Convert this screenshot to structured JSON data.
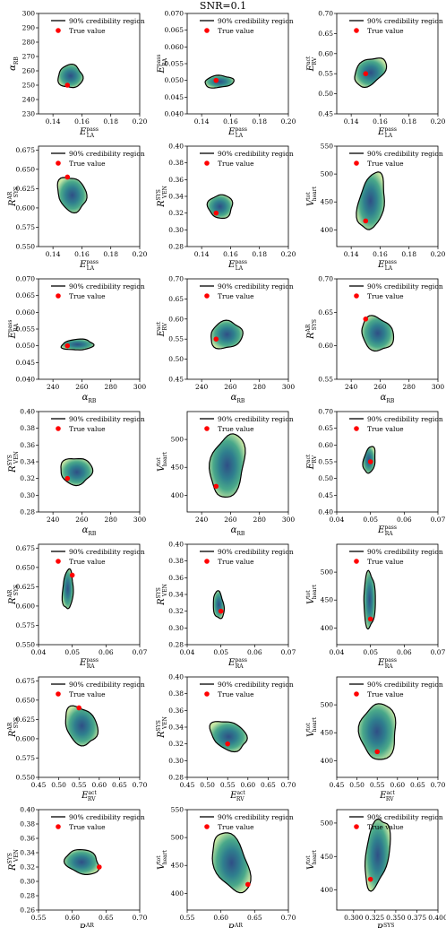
{
  "figure": {
    "title": "SNR=0.1"
  },
  "legend": {
    "region_label": "90% credibility region",
    "truth_label": "True value"
  },
  "colors": {
    "truth": "#ff0000",
    "contour": "#000000",
    "fill_outer": "#c6e6a4",
    "fill_mid": "#3fa48a",
    "fill_inner": "#2f4f86"
  },
  "chart_data": [
    {
      "type": "scatter",
      "xlabel": "E_LA^pass",
      "ylabel": "α_RB",
      "xlim": [
        0.13,
        0.2
      ],
      "ylim": [
        230,
        300
      ],
      "xticks": [
        "0.14",
        "0.16",
        "0.18",
        "0.20"
      ],
      "yticks": [
        "230",
        "240",
        "250",
        "260",
        "270",
        "280",
        "290",
        "300"
      ],
      "region_center": [
        0.152,
        256
      ],
      "region_half_width": [
        0.0085,
        8
      ],
      "tilt": 0,
      "truth": [
        0.15,
        250
      ]
    },
    {
      "type": "scatter",
      "xlabel": "E_LA^pass",
      "ylabel": "E_RA^pass",
      "xlim": [
        0.13,
        0.2
      ],
      "ylim": [
        0.04,
        0.07
      ],
      "xticks": [
        "0.14",
        "0.16",
        "0.18",
        "0.20"
      ],
      "yticks": [
        "0.040",
        "0.045",
        "0.050",
        "0.055",
        "0.060",
        "0.065",
        "0.070"
      ],
      "region_center": [
        0.152,
        0.0496
      ],
      "region_half_width": [
        0.01,
        0.0018
      ],
      "tilt": 0.25,
      "truth": [
        0.15,
        0.05
      ]
    },
    {
      "type": "scatter",
      "xlabel": "E_LA^pass",
      "ylabel": "E_RV^act",
      "xlim": [
        0.13,
        0.2
      ],
      "ylim": [
        0.45,
        0.7
      ],
      "xticks": [
        "0.14",
        "0.16",
        "0.18",
        "0.20"
      ],
      "yticks": [
        "0.45",
        "0.50",
        "0.55",
        "0.60",
        "0.65",
        "0.70"
      ],
      "region_center": [
        0.153,
        0.555
      ],
      "region_half_width": [
        0.011,
        0.033
      ],
      "tilt": 0.7,
      "truth": [
        0.15,
        0.55
      ]
    },
    {
      "type": "scatter",
      "xlabel": "E_LA^pass",
      "ylabel": "R_SYS^AR",
      "xlim": [
        0.13,
        0.2
      ],
      "ylim": [
        0.55,
        0.68
      ],
      "xticks": [
        "0.14",
        "0.16",
        "0.18",
        "0.20"
      ],
      "yticks": [
        "0.550",
        "0.575",
        "0.600",
        "0.625",
        "0.650",
        "0.675"
      ],
      "region_center": [
        0.153,
        0.618
      ],
      "region_half_width": [
        0.01,
        0.022
      ],
      "tilt": -0.35,
      "truth": [
        0.15,
        0.64
      ]
    },
    {
      "type": "scatter",
      "xlabel": "E_LA^pass",
      "ylabel": "R_VEN^SYS",
      "xlim": [
        0.13,
        0.2
      ],
      "ylim": [
        0.28,
        0.4
      ],
      "xticks": [
        "0.14",
        "0.16",
        "0.18",
        "0.20"
      ],
      "yticks": [
        "0.28",
        "0.30",
        "0.32",
        "0.34",
        "0.36",
        "0.38",
        "0.40"
      ],
      "region_center": [
        0.153,
        0.328
      ],
      "region_half_width": [
        0.0085,
        0.014
      ],
      "tilt": 0,
      "truth": [
        0.15,
        0.32
      ]
    },
    {
      "type": "scatter",
      "xlabel": "E_LA^pass",
      "ylabel": "V_heart^tot",
      "xlim": [
        0.13,
        0.2
      ],
      "ylim": [
        370,
        550
      ],
      "xticks": [
        "0.14",
        "0.16",
        "0.18",
        "0.20"
      ],
      "yticks": [
        "400",
        "450",
        "500",
        "550"
      ],
      "region_center": [
        0.154,
        450
      ],
      "region_half_width": [
        0.0095,
        48
      ],
      "tilt": 0.6,
      "truth": [
        0.15,
        416
      ]
    },
    {
      "type": "scatter",
      "xlabel": "α_RB",
      "ylabel": "E_RA^pass",
      "xlim": [
        230,
        300
      ],
      "ylim": [
        0.04,
        0.07
      ],
      "xticks": [
        "240",
        "260",
        "280",
        "300"
      ],
      "yticks": [
        "0.040",
        "0.045",
        "0.050",
        "0.055",
        "0.060",
        "0.065",
        "0.070"
      ],
      "region_center": [
        257,
        0.0503
      ],
      "region_half_width": [
        11,
        0.0016
      ],
      "tilt": 0.2,
      "truth": [
        250,
        0.05
      ]
    },
    {
      "type": "scatter",
      "xlabel": "α_RB",
      "ylabel": "E_RV^act",
      "xlim": [
        230,
        300
      ],
      "ylim": [
        0.45,
        0.7
      ],
      "xticks": [
        "240",
        "260",
        "280",
        "300"
      ],
      "yticks": [
        "0.45",
        "0.50",
        "0.55",
        "0.60",
        "0.65",
        "0.70"
      ],
      "region_center": [
        257,
        0.56
      ],
      "region_half_width": [
        11,
        0.034
      ],
      "tilt": 0.2,
      "truth": [
        250,
        0.55
      ]
    },
    {
      "type": "scatter",
      "xlabel": "α_RB",
      "ylabel": "R_SYS^AR",
      "xlim": [
        230,
        300
      ],
      "ylim": [
        0.55,
        0.7
      ],
      "xticks": [
        "240",
        "260",
        "280",
        "300"
      ],
      "yticks": [
        "0.55",
        "0.60",
        "0.65",
        "0.70"
      ],
      "region_center": [
        258,
        0.618
      ],
      "region_half_width": [
        11,
        0.025
      ],
      "tilt": -0.3,
      "truth": [
        250,
        0.64
      ]
    },
    {
      "type": "scatter",
      "xlabel": "α_RB",
      "ylabel": "R_VEN^SYS",
      "xlim": [
        230,
        300
      ],
      "ylim": [
        0.28,
        0.4
      ],
      "xticks": [
        "240",
        "260",
        "280",
        "300"
      ],
      "yticks": [
        "0.28",
        "0.30",
        "0.32",
        "0.34",
        "0.36",
        "0.38",
        "0.40"
      ],
      "region_center": [
        256,
        0.329
      ],
      "region_half_width": [
        11,
        0.016
      ],
      "tilt": 0,
      "truth": [
        250,
        0.32
      ]
    },
    {
      "type": "scatter",
      "xlabel": "α_RB",
      "ylabel": "V_heart^tot",
      "xlim": [
        230,
        300
      ],
      "ylim": [
        370,
        550
      ],
      "xticks": [
        "240",
        "260",
        "280",
        "300"
      ],
      "yticks": [
        "400",
        "450",
        "500"
      ],
      "region_center": [
        258,
        453
      ],
      "region_half_width": [
        12,
        55
      ],
      "tilt": 0.4,
      "truth": [
        250,
        416
      ]
    },
    {
      "type": "scatter",
      "xlabel": "E_RA^pass",
      "ylabel": "E_RV^act",
      "xlim": [
        0.04,
        0.07
      ],
      "ylim": [
        0.4,
        0.7
      ],
      "xticks": [
        "0.04",
        "0.05",
        "0.06",
        "0.07"
      ],
      "yticks": [
        "0.40",
        "0.45",
        "0.50",
        "0.55",
        "0.60",
        "0.65",
        "0.70"
      ],
      "region_center": [
        0.0497,
        0.555
      ],
      "region_half_width": [
        0.0018,
        0.038
      ],
      "tilt": 0.5,
      "truth": [
        0.05,
        0.55
      ]
    },
    {
      "type": "scatter",
      "xlabel": "E_RA^pass",
      "ylabel": "R_SYS^AR",
      "xlim": [
        0.04,
        0.07
      ],
      "ylim": [
        0.55,
        0.68
      ],
      "xticks": [
        "0.04",
        "0.05",
        "0.06",
        "0.07"
      ],
      "yticks": [
        "0.550",
        "0.575",
        "0.600",
        "0.625",
        "0.650",
        "0.675"
      ],
      "region_center": [
        0.0487,
        0.621
      ],
      "region_half_width": [
        0.0016,
        0.025
      ],
      "tilt": 0.3,
      "truth": [
        0.05,
        0.64
      ]
    },
    {
      "type": "scatter",
      "xlabel": "E_RA^pass",
      "ylabel": "R_VEN^SYS",
      "xlim": [
        0.04,
        0.07
      ],
      "ylim": [
        0.28,
        0.4
      ],
      "xticks": [
        "0.04",
        "0.05",
        "0.06",
        "0.07"
      ],
      "yticks": [
        "0.28",
        "0.30",
        "0.32",
        "0.34",
        "0.36",
        "0.38",
        "0.40"
      ],
      "region_center": [
        0.0493,
        0.327
      ],
      "region_half_width": [
        0.0016,
        0.016
      ],
      "tilt": -0.35,
      "truth": [
        0.05,
        0.32
      ]
    },
    {
      "type": "scatter",
      "xlabel": "E_RA^pass",
      "ylabel": "V_heart^tot",
      "xlim": [
        0.04,
        0.07
      ],
      "ylim": [
        370,
        550
      ],
      "xticks": [
        "0.04",
        "0.05",
        "0.06",
        "0.07"
      ],
      "yticks": [
        "400",
        "450",
        "500"
      ],
      "region_center": [
        0.0497,
        450
      ],
      "region_half_width": [
        0.0017,
        50
      ],
      "tilt": 0,
      "truth": [
        0.05,
        416
      ]
    },
    {
      "type": "scatter",
      "xlabel": "E_RV^act",
      "ylabel": "R_SYS^AR",
      "xlim": [
        0.45,
        0.7
      ],
      "ylim": [
        0.55,
        0.68
      ],
      "xticks": [
        "0.45",
        "0.50",
        "0.55",
        "0.60",
        "0.65",
        "0.70"
      ],
      "yticks": [
        "0.550",
        "0.575",
        "0.600",
        "0.625",
        "0.650",
        "0.675"
      ],
      "region_center": [
        0.555,
        0.617
      ],
      "region_half_width": [
        0.04,
        0.024
      ],
      "tilt": -0.45,
      "truth": [
        0.55,
        0.64
      ]
    },
    {
      "type": "scatter",
      "xlabel": "E_RV^act",
      "ylabel": "R_VEN^SYS",
      "xlim": [
        0.45,
        0.7
      ],
      "ylim": [
        0.28,
        0.4
      ],
      "xticks": [
        "0.45",
        "0.50",
        "0.55",
        "0.60",
        "0.65",
        "0.70"
      ],
      "yticks": [
        "0.28",
        "0.30",
        "0.32",
        "0.34",
        "0.36",
        "0.38",
        "0.40"
      ],
      "region_center": [
        0.552,
        0.33
      ],
      "region_half_width": [
        0.045,
        0.017
      ],
      "tilt": -0.55,
      "truth": [
        0.55,
        0.32
      ]
    },
    {
      "type": "scatter",
      "xlabel": "E_RV^act",
      "ylabel": "V_heart^tot",
      "xlim": [
        0.45,
        0.7
      ],
      "ylim": [
        370,
        550
      ],
      "xticks": [
        "0.45",
        "0.50",
        "0.55",
        "0.60",
        "0.65",
        "0.70"
      ],
      "yticks": [
        "400",
        "450",
        "500"
      ],
      "region_center": [
        0.553,
        452
      ],
      "region_half_width": [
        0.045,
        50
      ],
      "tilt": 0,
      "truth": [
        0.55,
        416
      ]
    },
    {
      "type": "scatter",
      "xlabel": "R_SYS^AR",
      "ylabel": "R_VEN^SYS",
      "xlim": [
        0.55,
        0.7
      ],
      "ylim": [
        0.26,
        0.4
      ],
      "xticks": [
        "0.55",
        "0.60",
        "0.65",
        "0.70"
      ],
      "yticks": [
        "0.26",
        "0.28",
        "0.30",
        "0.32",
        "0.34",
        "0.36",
        "0.38",
        "0.40"
      ],
      "region_center": [
        0.615,
        0.327
      ],
      "region_half_width": [
        0.025,
        0.017
      ],
      "tilt": -0.35,
      "truth": [
        0.64,
        0.32
      ]
    },
    {
      "type": "scatter",
      "xlabel": "R_SYS^AR",
      "ylabel": "V_heart^tot",
      "xlim": [
        0.55,
        0.7
      ],
      "ylim": [
        370,
        550
      ],
      "xticks": [
        "0.55",
        "0.60",
        "0.65",
        "0.70"
      ],
      "yticks": [
        "400",
        "450",
        "500",
        "550"
      ],
      "region_center": [
        0.615,
        455
      ],
      "region_half_width": [
        0.028,
        48
      ],
      "tilt": -0.8,
      "truth": [
        0.64,
        416
      ]
    },
    {
      "type": "scatter",
      "xlabel": "R_VEN^SYS",
      "ylabel": "V_heart^tot",
      "xlim": [
        0.28,
        0.4
      ],
      "ylim": [
        370,
        520
      ],
      "xticks": [
        "0.300",
        "0.325",
        "0.350",
        "0.375",
        "0.400"
      ],
      "yticks": [
        "400",
        "450",
        "500"
      ],
      "region_center": [
        0.328,
        455
      ],
      "region_half_width": [
        0.015,
        48
      ],
      "tilt": 0.7,
      "truth": [
        0.32,
        416
      ]
    }
  ]
}
